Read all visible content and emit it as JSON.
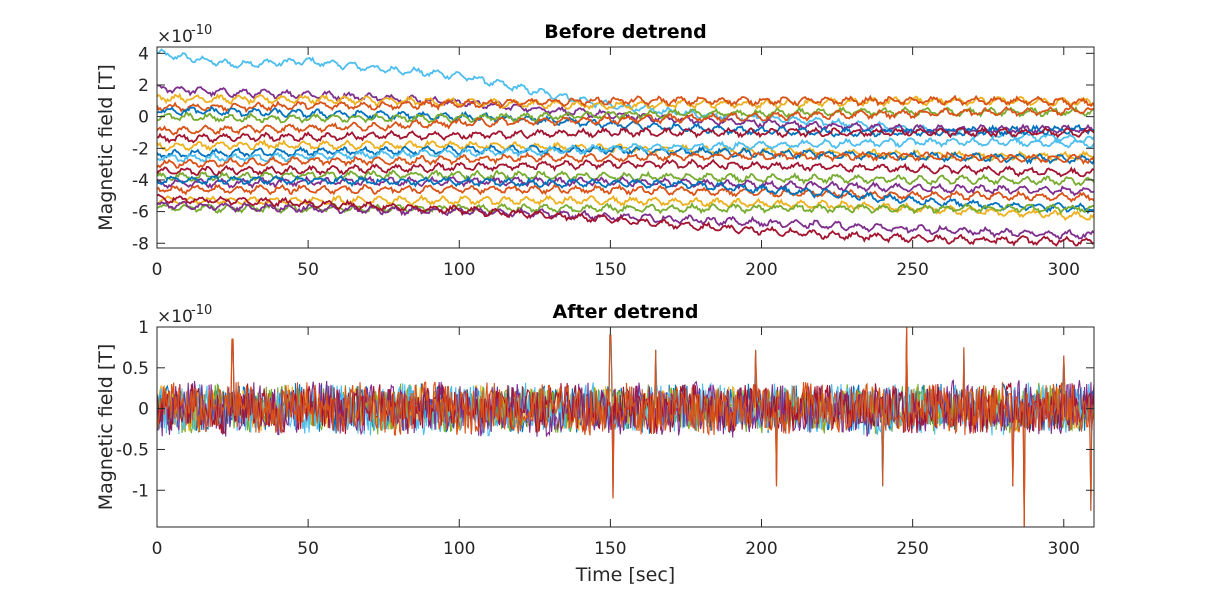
{
  "chart_data": [
    {
      "type": "line",
      "title": "Before detrend",
      "ylabel": "Magnetic field [T]",
      "xlabel": "",
      "y_exponent_prefix": "×10",
      "y_exponent_power": "-10",
      "xlim": [
        0,
        310
      ],
      "ylim": [
        -8.3,
        4.4
      ],
      "xticks": [
        0,
        50,
        100,
        150,
        200,
        250,
        300
      ],
      "xtick_labels": [
        "0",
        "50",
        "100",
        "150",
        "200",
        "250",
        "300"
      ],
      "yticks": [
        -8,
        -6,
        -4,
        -2,
        0,
        2,
        4
      ],
      "ytick_labels": [
        "-8",
        "-6",
        "-4",
        "-2",
        "0",
        "2",
        "4"
      ],
      "grid": false,
      "legend": "none",
      "x": [
        0,
        25,
        50,
        75,
        100,
        125,
        150,
        175,
        200,
        225,
        250,
        275,
        310
      ],
      "series": [
        {
          "color": "#4DBEEE",
          "values": [
            4.0,
            3.3,
            3.5,
            3.0,
            2.6,
            1.6,
            0.7,
            0.2,
            -0.1,
            -0.4,
            -0.8,
            -1.1,
            -1.5
          ]
        },
        {
          "color": "#7E2F8E",
          "values": [
            1.8,
            1.5,
            1.4,
            1.2,
            0.9,
            0.5,
            0.1,
            -0.2,
            -0.4,
            -0.6,
            -0.8,
            -0.8,
            -0.8
          ]
        },
        {
          "color": "#EDB120",
          "values": [
            1.2,
            1.1,
            1.1,
            1.0,
            0.9,
            0.8,
            0.7,
            0.8,
            0.8,
            0.9,
            1.0,
            1.0,
            0.9
          ]
        },
        {
          "color": "#D95319",
          "values": [
            0.6,
            0.6,
            0.7,
            0.7,
            0.8,
            0.9,
            1.0,
            1.0,
            1.0,
            1.0,
            1.0,
            1.0,
            0.9
          ]
        },
        {
          "color": "#0072BD",
          "values": [
            0.4,
            0.3,
            0.2,
            0.1,
            0.0,
            -0.2,
            -0.5,
            -0.7,
            -0.9,
            -1.0,
            -1.0,
            -0.9,
            -0.8
          ]
        },
        {
          "color": "#77AC30",
          "values": [
            0.0,
            -0.1,
            -0.1,
            -0.1,
            -0.1,
            0.0,
            0.1,
            0.2,
            0.2,
            0.3,
            0.3,
            0.3,
            0.3
          ]
        },
        {
          "color": "#D95319",
          "values": [
            -0.9,
            -0.8,
            -0.7,
            -0.6,
            -0.4,
            -0.3,
            -0.2,
            -0.1,
            0.0,
            0.1,
            0.2,
            0.3,
            0.4
          ]
        },
        {
          "color": "#A2142F",
          "values": [
            -1.4,
            -1.3,
            -1.3,
            -1.2,
            -1.2,
            -1.1,
            -1.0,
            -1.0,
            -1.0,
            -1.0,
            -1.0,
            -1.0,
            -1.0
          ]
        },
        {
          "color": "#EDB120",
          "values": [
            -1.9,
            -1.8,
            -1.8,
            -1.8,
            -1.8,
            -1.9,
            -2.0,
            -2.1,
            -2.2,
            -2.3,
            -2.4,
            -2.5,
            -2.5
          ]
        },
        {
          "color": "#0072BD",
          "values": [
            -2.4,
            -2.3,
            -2.2,
            -2.2,
            -2.1,
            -2.1,
            -2.1,
            -2.2,
            -2.3,
            -2.4,
            -2.5,
            -2.6,
            -2.7
          ]
        },
        {
          "color": "#4DBEEE",
          "values": [
            -2.6,
            -2.6,
            -2.5,
            -2.4,
            -2.3,
            -2.2,
            -2.0,
            -1.9,
            -1.8,
            -1.7,
            -1.6,
            -1.6,
            -1.7
          ]
        },
        {
          "color": "#D95319",
          "values": [
            -3.0,
            -2.9,
            -2.8,
            -2.8,
            -2.7,
            -2.6,
            -2.6,
            -2.5,
            -2.5,
            -2.5,
            -2.5,
            -2.6,
            -2.7
          ]
        },
        {
          "color": "#A2142F",
          "values": [
            -3.5,
            -3.4,
            -3.4,
            -3.3,
            -3.2,
            -3.1,
            -3.0,
            -3.0,
            -3.1,
            -3.2,
            -3.3,
            -3.4,
            -3.6
          ]
        },
        {
          "color": "#77AC30",
          "values": [
            -3.8,
            -3.8,
            -3.7,
            -3.7,
            -3.7,
            -3.7,
            -3.8,
            -3.8,
            -3.9,
            -3.9,
            -4.0,
            -4.0,
            -4.1
          ]
        },
        {
          "color": "#7E2F8E",
          "values": [
            -4.2,
            -4.2,
            -4.1,
            -4.1,
            -4.1,
            -4.1,
            -4.1,
            -4.2,
            -4.3,
            -4.4,
            -4.5,
            -4.6,
            -4.7
          ]
        },
        {
          "color": "#D95319",
          "values": [
            -4.6,
            -4.6,
            -4.6,
            -4.6,
            -4.6,
            -4.6,
            -4.6,
            -4.7,
            -4.8,
            -4.9,
            -5.0,
            -5.0,
            -5.1
          ]
        },
        {
          "color": "#0072BD",
          "values": [
            -4.0,
            -4.0,
            -4.0,
            -4.1,
            -4.1,
            -4.2,
            -4.2,
            -4.3,
            -4.6,
            -4.9,
            -5.3,
            -5.6,
            -5.8
          ]
        },
        {
          "color": "#EDB120",
          "values": [
            -5.3,
            -5.3,
            -5.3,
            -5.3,
            -5.3,
            -5.3,
            -5.3,
            -5.4,
            -5.5,
            -5.6,
            -5.8,
            -6.0,
            -6.3
          ]
        },
        {
          "color": "#77AC30",
          "values": [
            -5.7,
            -5.8,
            -5.8,
            -5.8,
            -5.8,
            -5.8,
            -5.8,
            -5.8,
            -5.8,
            -5.8,
            -5.8,
            -5.8,
            -5.8
          ]
        },
        {
          "color": "#7E2F8E",
          "values": [
            -5.6,
            -5.7,
            -5.8,
            -5.9,
            -6.0,
            -6.1,
            -6.3,
            -6.5,
            -6.7,
            -6.9,
            -7.1,
            -7.3,
            -7.5
          ]
        },
        {
          "color": "#A2142F",
          "values": [
            -5.2,
            -5.3,
            -5.5,
            -5.7,
            -5.9,
            -6.2,
            -6.5,
            -6.9,
            -7.2,
            -7.5,
            -7.7,
            -7.8,
            -7.9
          ]
        }
      ]
    },
    {
      "type": "line",
      "title": "After detrend",
      "ylabel": "Magnetic field [T]",
      "xlabel": "Time [sec]",
      "y_exponent_prefix": "×10",
      "y_exponent_power": "-10",
      "xlim": [
        0,
        310
      ],
      "ylim": [
        -1.45,
        1.0
      ],
      "xticks": [
        0,
        50,
        100,
        150,
        200,
        250,
        300
      ],
      "xtick_labels": [
        "0",
        "50",
        "100",
        "150",
        "200",
        "250",
        "300"
      ],
      "yticks": [
        -1,
        -0.5,
        0,
        0.5,
        1
      ],
      "ytick_labels": [
        "-1",
        "-0.5",
        "0",
        "0.5",
        "1"
      ],
      "grid": false,
      "legend": "none",
      "series": [
        {
          "color": "#0072BD",
          "amplitude": 0.3
        },
        {
          "color": "#EDB120",
          "amplitude": 0.27
        },
        {
          "color": "#77AC30",
          "amplitude": 0.3
        },
        {
          "color": "#4DBEEE",
          "amplitude": 0.32
        },
        {
          "color": "#7E2F8E",
          "amplitude": 0.34
        },
        {
          "color": "#A2142F",
          "amplitude": 0.3
        },
        {
          "color": "#D95319",
          "amplitude": 0.32
        }
      ],
      "spikes": [
        {
          "x": 25,
          "value": 0.85
        },
        {
          "x": 150,
          "value": 0.9
        },
        {
          "x": 151,
          "value": -1.1
        },
        {
          "x": 165,
          "value": 0.72
        },
        {
          "x": 198,
          "value": 0.72
        },
        {
          "x": 205,
          "value": -0.95
        },
        {
          "x": 240,
          "value": -0.95
        },
        {
          "x": 248,
          "value": 1.0
        },
        {
          "x": 267,
          "value": 0.75
        },
        {
          "x": 283,
          "value": -0.95
        },
        {
          "x": 287,
          "value": -1.45
        },
        {
          "x": 300,
          "value": 0.65
        },
        {
          "x": 309,
          "value": -1.25
        }
      ]
    }
  ]
}
